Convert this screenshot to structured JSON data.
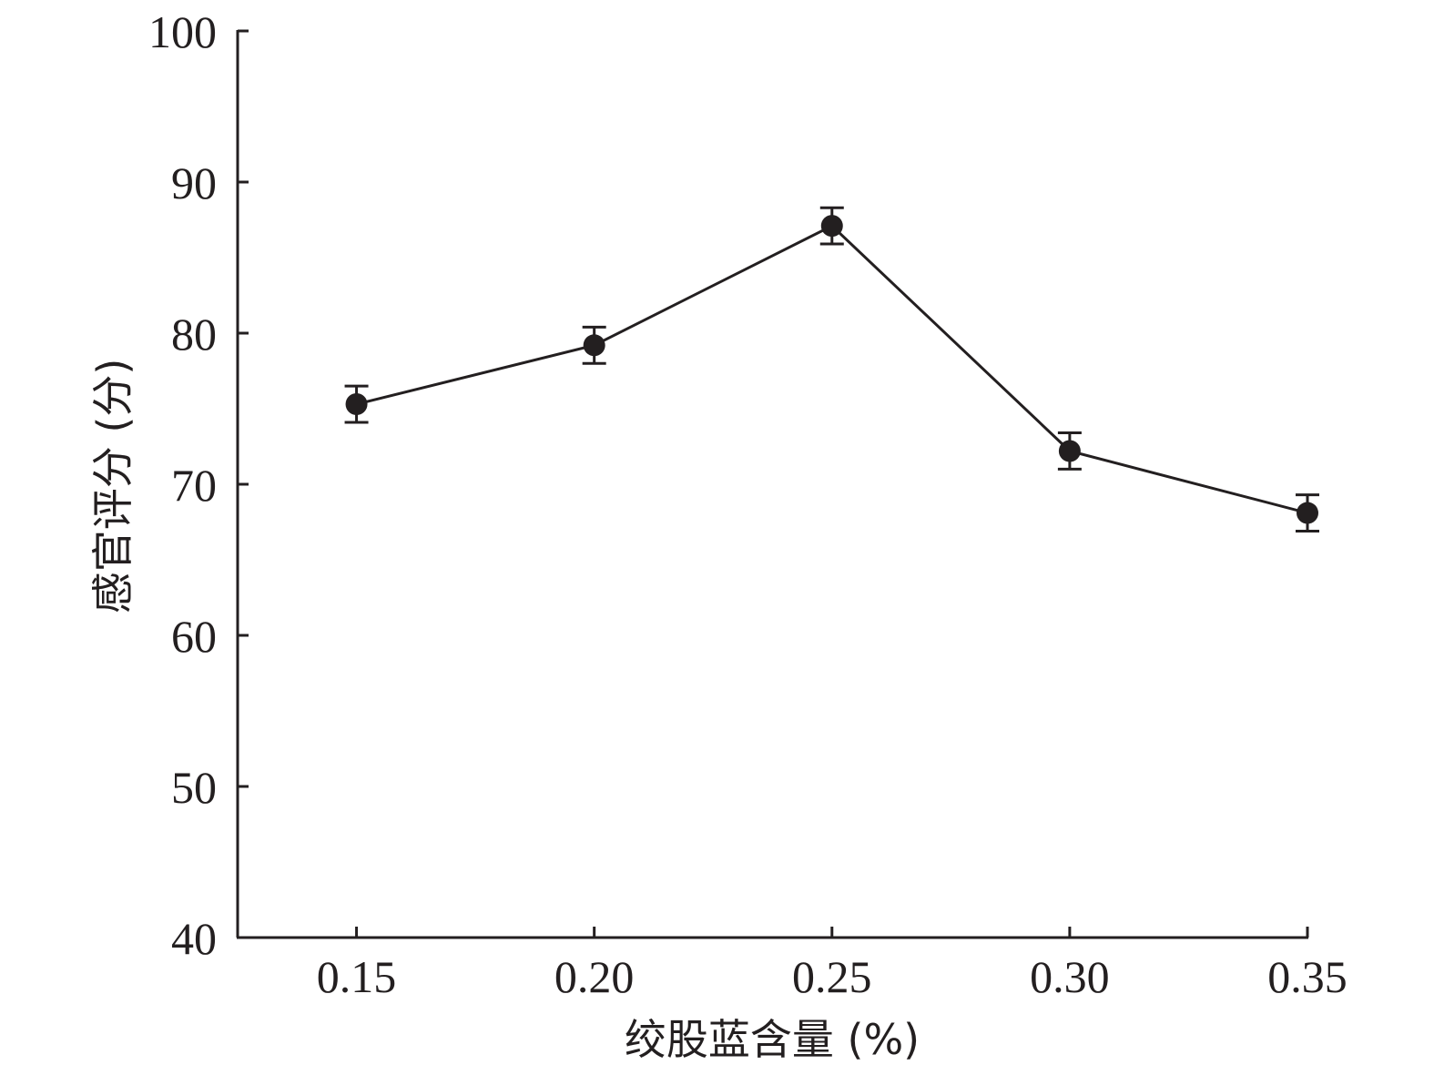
{
  "chart_data": {
    "type": "line",
    "xlabel": "绞股蓝含量 (%)",
    "ylabel": "感官评分 (分)",
    "x": [
      0.15,
      0.2,
      0.25,
      0.3,
      0.35
    ],
    "x_tick_labels": [
      "0.15",
      "0.20",
      "0.25",
      "0.30",
      "0.35"
    ],
    "xlim": [
      0.125,
      0.35
    ],
    "y_ticks": [
      40,
      50,
      60,
      70,
      80,
      90,
      100
    ],
    "y_tick_labels": [
      "40",
      "50",
      "60",
      "70",
      "80",
      "90",
      "100"
    ],
    "ylim": [
      40,
      100
    ],
    "grid": false,
    "series": [
      {
        "values": [
          75.3,
          79.2,
          87.1,
          72.2,
          68.1
        ],
        "errors": [
          1.2,
          1.2,
          1.2,
          1.2,
          1.2
        ],
        "color": "#231f20",
        "marker": "circle"
      }
    ]
  }
}
